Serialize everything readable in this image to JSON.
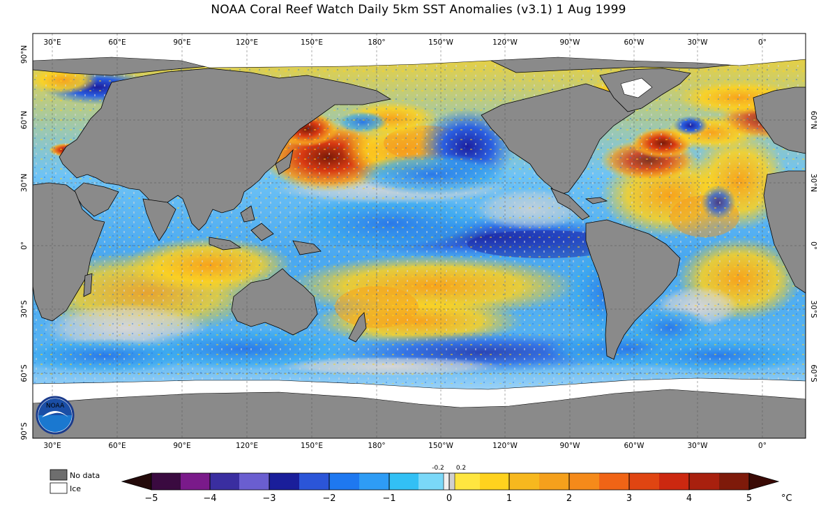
{
  "title": "NOAA Coral Reef Watch Daily 5km SST Anomalies  (v3.1)   1 Aug 1999",
  "lon_labels": [
    "30°E",
    "60°E",
    "90°E",
    "120°E",
    "150°E",
    "180°",
    "150°W",
    "120°W",
    "90°W",
    "60°W",
    "30°W",
    "0°"
  ],
  "lat_labels_left": [
    "90°N",
    "60°N",
    "30°N",
    "0°",
    "30°S",
    "60°S",
    "90°S"
  ],
  "lat_labels_right": [
    "60°N",
    "30°N",
    "0°",
    "30°S",
    "60°S"
  ],
  "legend": {
    "no_data": "No data",
    "ice": "Ice"
  },
  "logo_text": "NOAA",
  "colorbar": {
    "ticks": [
      "−5",
      "−4",
      "−3",
      "−2",
      "−1",
      "0",
      "1",
      "2",
      "3",
      "4",
      "5"
    ],
    "small_ticks": [
      "-0.2",
      "0.2"
    ],
    "unit": "°C"
  },
  "colors": {
    "land": "#8a8a8a",
    "no_anomaly": "#d6d6d6",
    "cool": "#1e90ff",
    "warm": "#ffd21e",
    "hot": "#c0280f"
  }
}
